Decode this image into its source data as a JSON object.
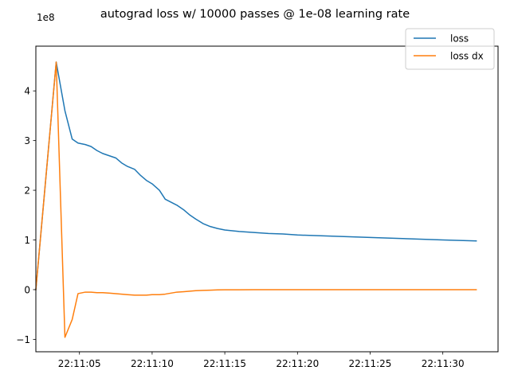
{
  "chart_data": {
    "type": "line",
    "title": "autograd loss w/ 10000 passes @ 1e-08 learning rate",
    "xlabel": "",
    "ylabel": "",
    "y_offset_text": "1e8",
    "xlim": [
      "22:11:02.0",
      "22:11:33.8"
    ],
    "ylim": [
      -1.25,
      4.9
    ],
    "x_ticks": [
      "22:11:05",
      "22:11:10",
      "22:11:15",
      "22:11:20",
      "22:11:25",
      "22:11:30"
    ],
    "y_ticks": [
      -1,
      0,
      1,
      2,
      3,
      4
    ],
    "y_tick_labels": [
      "−1",
      "0",
      "1",
      "2",
      "3",
      "4"
    ],
    "grid": false,
    "legend_placement": "top-right",
    "series": [
      {
        "name": "loss",
        "color": "#1f77b4",
        "x": [
          "22:11:02.0",
          "22:11:03.4",
          "22:11:04.0",
          "22:11:04.5",
          "22:11:04.9",
          "22:11:05.4",
          "22:11:05.8",
          "22:11:06.2",
          "22:11:06.6",
          "22:11:07.1",
          "22:11:07.5",
          "22:11:07.9",
          "22:11:08.3",
          "22:11:08.8",
          "22:11:09.2",
          "22:11:09.6",
          "22:11:10.0",
          "22:11:10.5",
          "22:11:10.9",
          "22:11:11.3",
          "22:11:11.7",
          "22:11:12.2",
          "22:11:12.6",
          "22:11:13.0",
          "22:11:13.5",
          "22:11:14.0",
          "22:11:14.5",
          "22:11:15.0",
          "22:11:16.0",
          "22:11:17.0",
          "22:11:18.0",
          "22:11:19.0",
          "22:11:20.0",
          "22:11:22.0",
          "22:11:24.0",
          "22:11:26.0",
          "22:11:28.0",
          "22:11:30.0",
          "22:11:32.3"
        ],
        "values": [
          0.0,
          4.58,
          3.6,
          3.03,
          2.95,
          2.92,
          2.88,
          2.8,
          2.74,
          2.69,
          2.65,
          2.55,
          2.48,
          2.42,
          2.3,
          2.2,
          2.13,
          2.0,
          1.82,
          1.76,
          1.7,
          1.6,
          1.5,
          1.42,
          1.33,
          1.27,
          1.23,
          1.2,
          1.17,
          1.15,
          1.13,
          1.12,
          1.1,
          1.08,
          1.06,
          1.04,
          1.02,
          1.0,
          0.98
        ]
      },
      {
        "name": "loss dx",
        "color": "#ff7f0e",
        "x": [
          "22:11:02.0",
          "22:11:03.4",
          "22:11:04.0",
          "22:11:04.5",
          "22:11:04.9",
          "22:11:05.4",
          "22:11:05.8",
          "22:11:06.2",
          "22:11:06.6",
          "22:11:07.1",
          "22:11:07.5",
          "22:11:07.9",
          "22:11:08.3",
          "22:11:08.8",
          "22:11:09.2",
          "22:11:09.6",
          "22:11:10.0",
          "22:11:10.5",
          "22:11:10.9",
          "22:11:11.3",
          "22:11:11.7",
          "22:11:12.2",
          "22:11:12.6",
          "22:11:13.0",
          "22:11:13.5",
          "22:11:14.0",
          "22:11:14.5",
          "22:11:15.0",
          "22:11:16.0",
          "22:11:17.0",
          "22:11:18.0",
          "22:11:19.0",
          "22:11:20.0",
          "22:11:22.0",
          "22:11:24.0",
          "22:11:26.0",
          "22:11:28.0",
          "22:11:30.0",
          "22:11:32.3"
        ],
        "values": [
          0.0,
          4.58,
          -0.96,
          -0.6,
          -0.08,
          -0.05,
          -0.05,
          -0.06,
          -0.06,
          -0.07,
          -0.08,
          -0.09,
          -0.1,
          -0.11,
          -0.11,
          -0.11,
          -0.1,
          -0.1,
          -0.09,
          -0.07,
          -0.05,
          -0.04,
          -0.03,
          -0.02,
          -0.015,
          -0.01,
          -0.005,
          -0.003,
          -0.002,
          -0.001,
          0.0,
          0.0,
          0.0,
          0.0,
          0.0,
          0.0,
          0.0,
          0.0,
          0.0
        ]
      }
    ]
  }
}
